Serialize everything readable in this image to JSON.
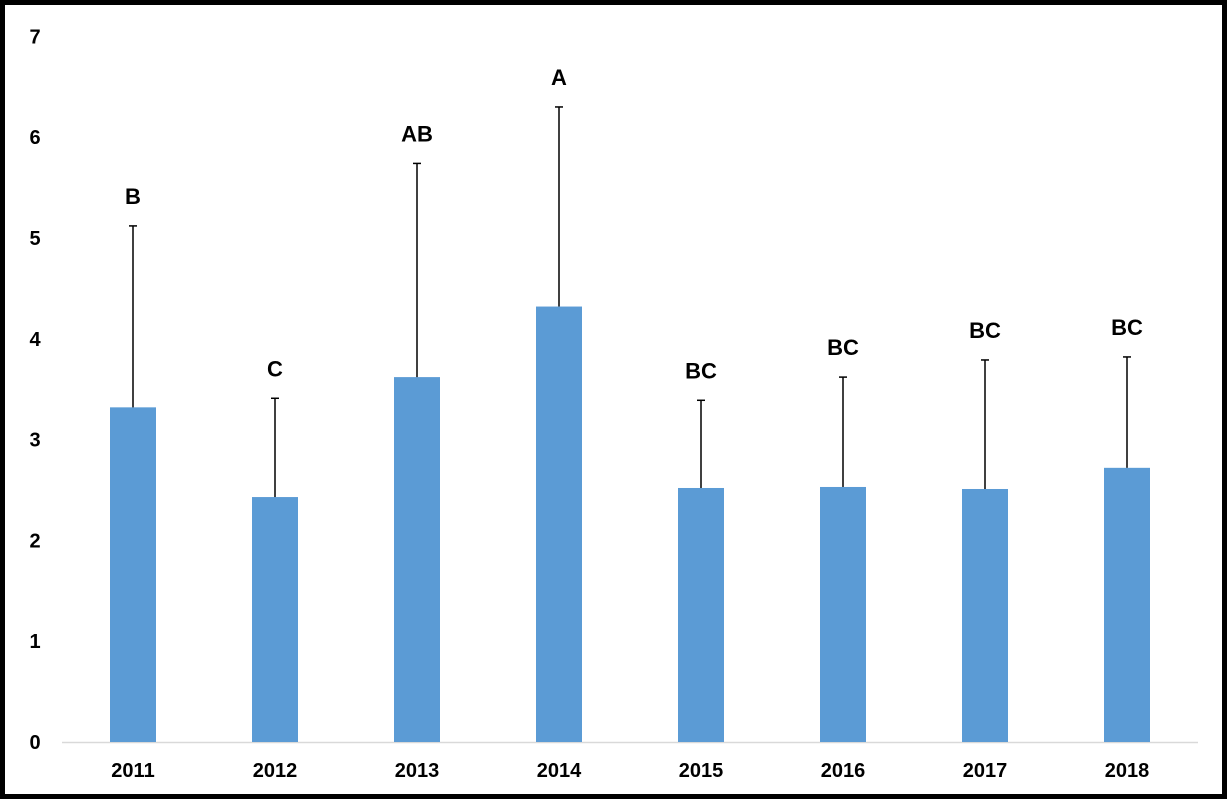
{
  "chart_data": {
    "type": "bar",
    "categories": [
      "2011",
      "2012",
      "2013",
      "2014",
      "2015",
      "2016",
      "2017",
      "2018"
    ],
    "values": [
      3.32,
      2.43,
      3.62,
      4.32,
      2.52,
      2.53,
      2.51,
      2.72
    ],
    "error_upper": [
      5.12,
      3.41,
      5.74,
      6.3,
      3.39,
      3.62,
      3.79,
      3.82
    ],
    "significance_labels": [
      "B",
      "C",
      "AB",
      "A",
      "BC",
      "BC",
      "BC",
      "BC"
    ],
    "title": "",
    "xlabel": "",
    "ylabel": "",
    "ylim": [
      0,
      7
    ],
    "yticks": [
      "0",
      "1",
      "2",
      "3",
      "4",
      "5",
      "6",
      "7"
    ],
    "grid": false,
    "legend": "none",
    "colors": {
      "bar": "#5B9BD5",
      "error_bar": "#000000",
      "axis": "#D9D9D9",
      "frame": "#000000"
    }
  }
}
